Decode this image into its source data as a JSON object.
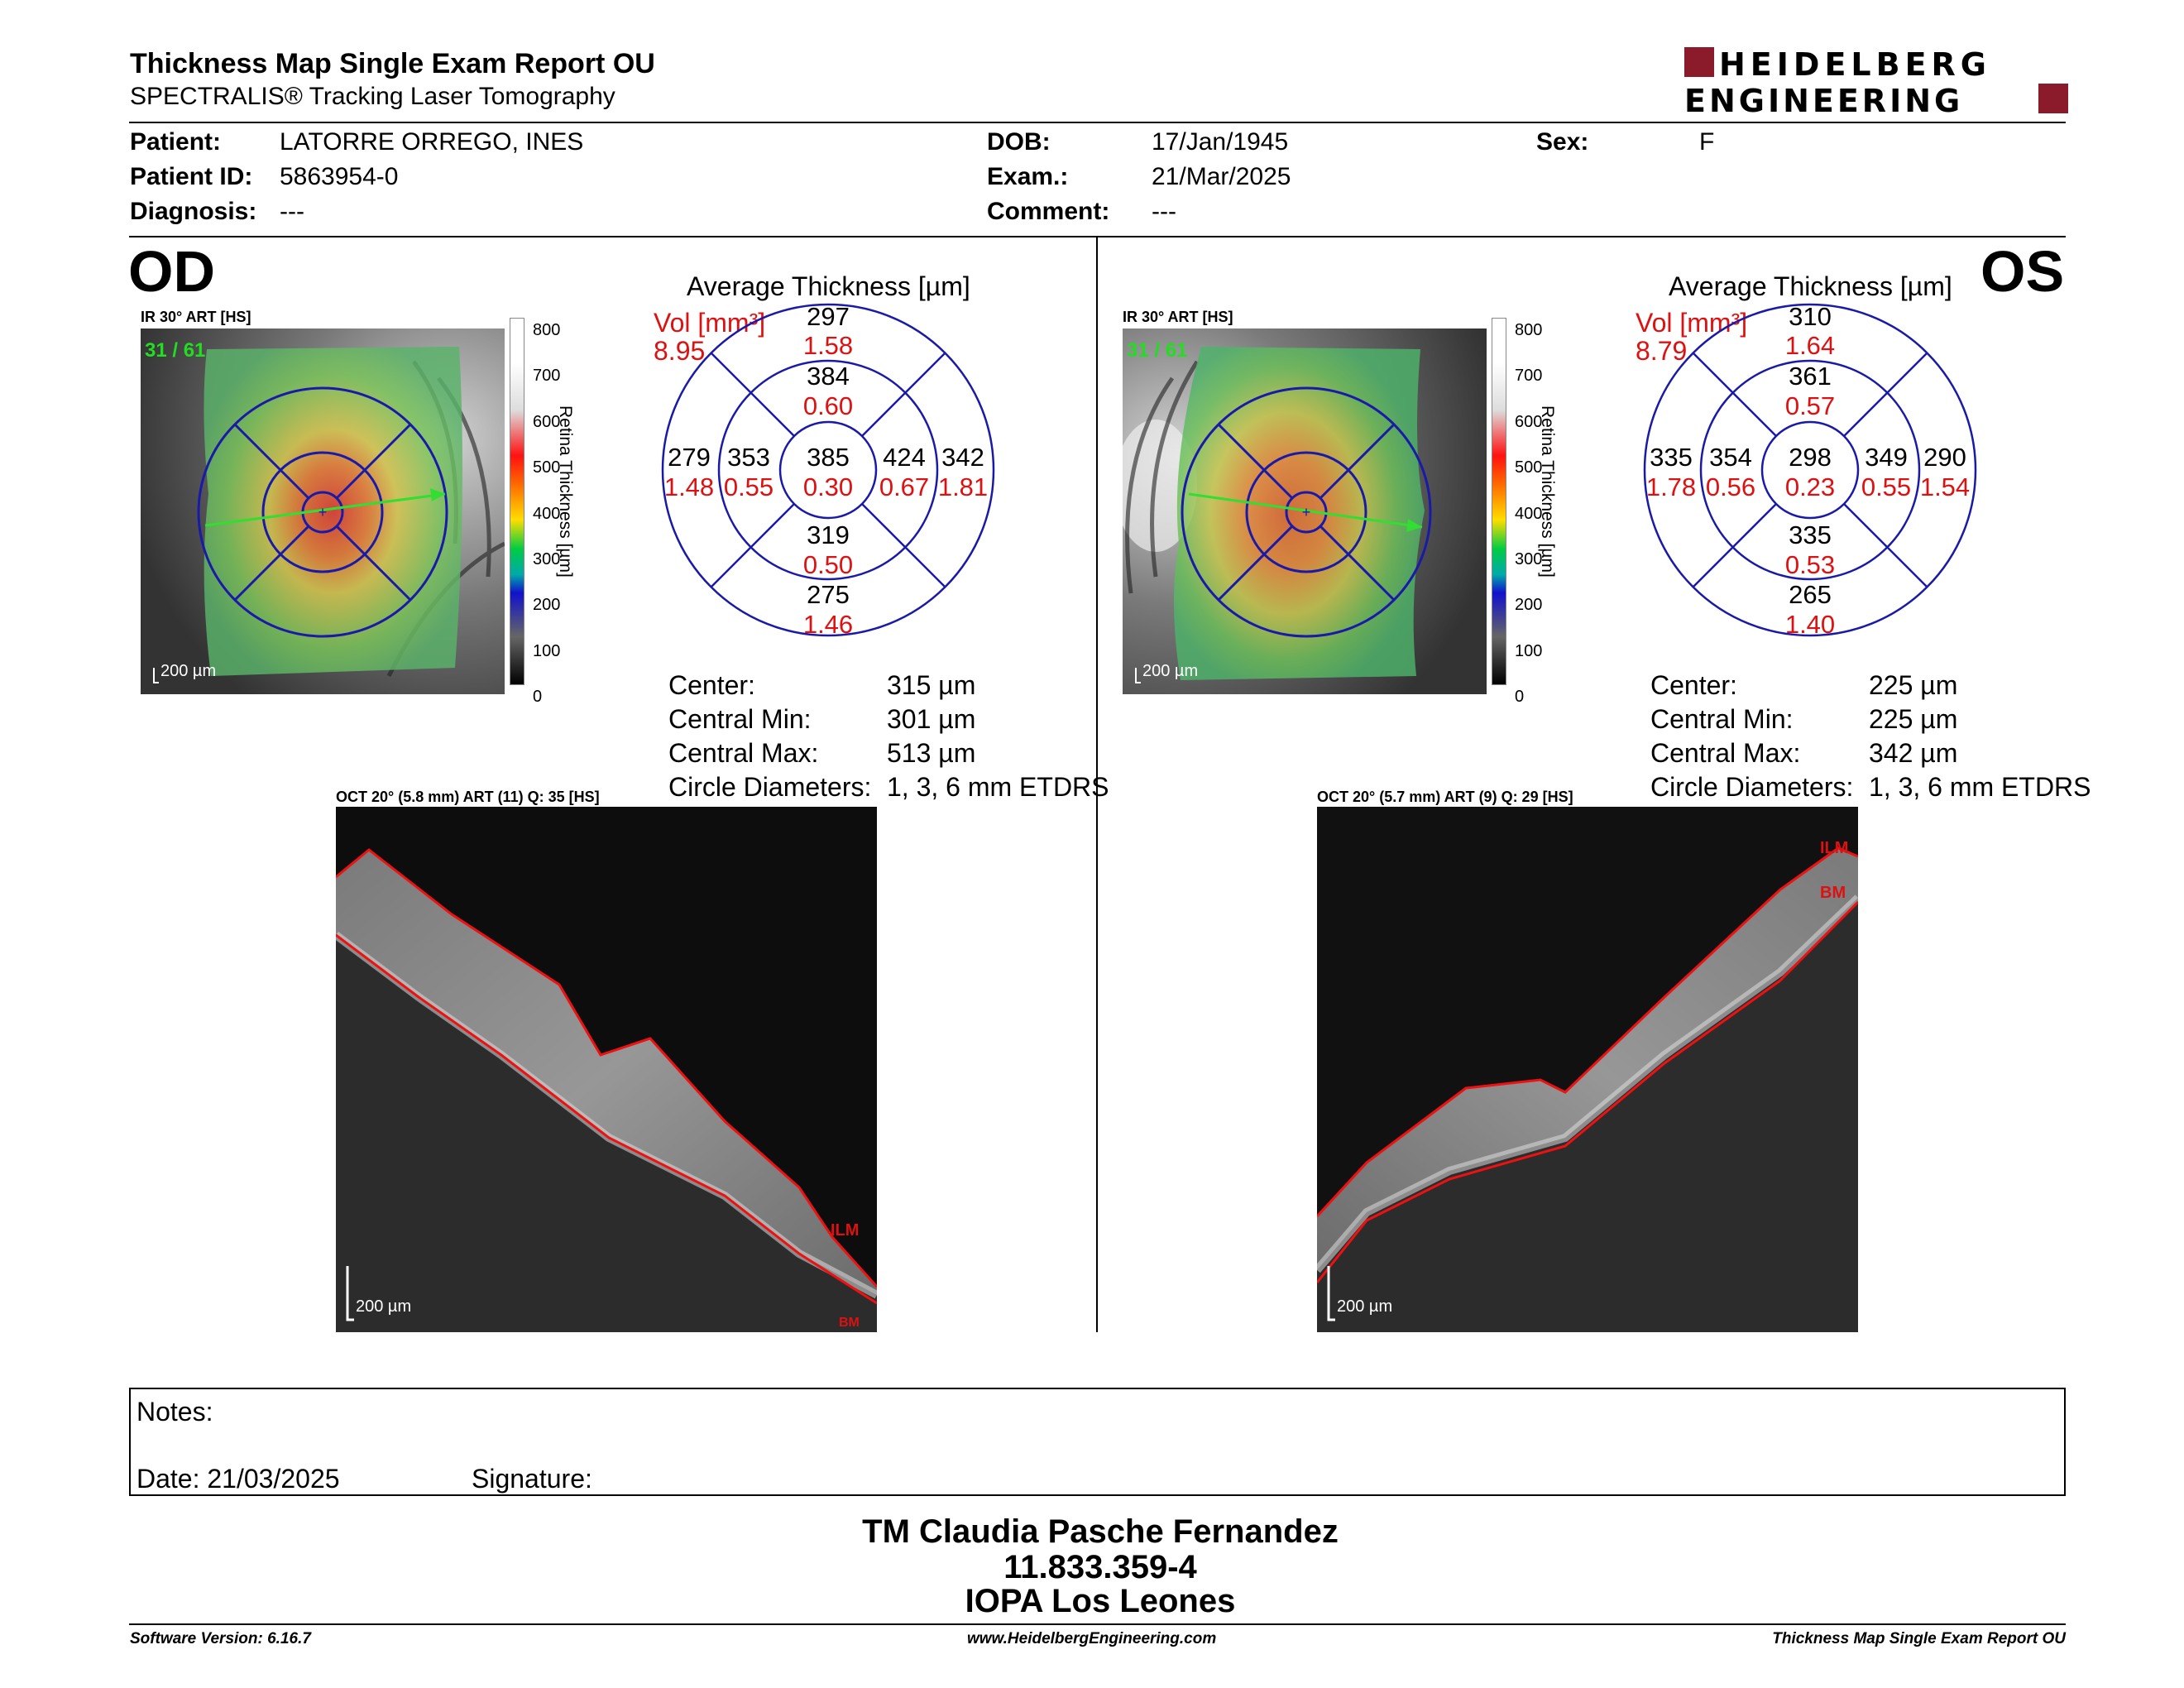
{
  "header": {
    "title": "Thickness Map Single Exam Report OU",
    "subtitle": "SPECTRALIS® Tracking Laser Tomography",
    "logo_line1": "HEIDELBERG",
    "logo_line2": "ENGINEERING"
  },
  "patient": {
    "patient_label": "Patient:",
    "patient_value": "LATORRE ORREGO, INES",
    "id_label": "Patient ID:",
    "id_value": "5863954-0",
    "diagnosis_label": "Diagnosis:",
    "diagnosis_value": "---",
    "dob_label": "DOB:",
    "dob_value": "17/Jan/1945",
    "exam_label": "Exam.:",
    "exam_value": "21/Mar/2025",
    "comment_label": "Comment:",
    "comment_value": "---",
    "sex_label": "Sex:",
    "sex_value": "F"
  },
  "scale": {
    "ticks": [
      "800",
      "700",
      "600",
      "500",
      "400",
      "300",
      "200",
      "100",
      "0"
    ],
    "label": "Retina Thickness [µm]"
  },
  "od": {
    "eye": "OD",
    "ir_label": "IR 30° ART [HS]",
    "frame": "31 / 61",
    "ir_scale": "200 µm",
    "avg_title": "Average Thickness [µm]",
    "vol_label": "Vol [mm³]",
    "vol_value": "8.95",
    "sectors": {
      "center_t": "385",
      "center_v": "0.30",
      "inner_sup_t": "384",
      "inner_sup_v": "0.60",
      "inner_inf_t": "319",
      "inner_inf_v": "0.50",
      "inner_left_t": "353",
      "inner_left_v": "0.55",
      "inner_right_t": "424",
      "inner_right_v": "0.67",
      "outer_sup_t": "297",
      "outer_sup_v": "1.58",
      "outer_inf_t": "275",
      "outer_inf_v": "1.46",
      "outer_left_t": "279",
      "outer_left_v": "1.48",
      "outer_right_t": "342",
      "outer_right_v": "1.81"
    },
    "stats": {
      "center_label": "Center:",
      "center_value": "315 µm",
      "cmin_label": "Central Min:",
      "cmin_value": "301 µm",
      "cmax_label": "Central Max:",
      "cmax_value": "513 µm",
      "circ_label": "Circle Diameters:",
      "circ_value": "1, 3, 6 mm ETDRS"
    },
    "oct_label": "OCT 20° (5.8 mm) ART (11) Q: 35 [HS]",
    "oct_scale": "200 µm",
    "ilm": "ILM",
    "bm": "BM"
  },
  "os": {
    "eye": "OS",
    "ir_label": "IR 30° ART [HS]",
    "frame": "31 / 61",
    "ir_scale": "200 µm",
    "avg_title": "Average Thickness [µm]",
    "vol_label": "Vol [mm³]",
    "vol_value": "8.79",
    "sectors": {
      "center_t": "298",
      "center_v": "0.23",
      "inner_sup_t": "361",
      "inner_sup_v": "0.57",
      "inner_inf_t": "335",
      "inner_inf_v": "0.53",
      "inner_left_t": "354",
      "inner_left_v": "0.56",
      "inner_right_t": "349",
      "inner_right_v": "0.55",
      "outer_sup_t": "310",
      "outer_sup_v": "1.64",
      "outer_inf_t": "265",
      "outer_inf_v": "1.40",
      "outer_left_t": "335",
      "outer_left_v": "1.78",
      "outer_right_t": "290",
      "outer_right_v": "1.54"
    },
    "stats": {
      "center_label": "Center:",
      "center_value": "225 µm",
      "cmin_label": "Central Min:",
      "cmin_value": "225 µm",
      "cmax_label": "Central Max:",
      "cmax_value": "342 µm",
      "circ_label": "Circle Diameters:",
      "circ_value": "1, 3, 6 mm ETDRS"
    },
    "oct_label": "OCT 20° (5.7 mm) ART (9) Q: 29 [HS]",
    "oct_scale": "200 µm",
    "ilm": "ILM",
    "bm": "BM"
  },
  "notes": {
    "notes_label": "Notes:",
    "date_label": "Date: 21/03/2025",
    "signature_label": "Signature:"
  },
  "signatory": {
    "name": "TM Claudia Pasche Fernandez",
    "id": "11.833.359-4",
    "org": "IOPA Los Leones"
  },
  "footer": {
    "software": "Software Version: 6.16.7",
    "website": "www.HeidelbergEngineering.com",
    "report": "Thickness Map Single Exam Report OU"
  },
  "colors": {
    "accent_red": "#8b1a2b",
    "ring_blue": "#1a1aa8",
    "value_red": "#dd1111"
  }
}
